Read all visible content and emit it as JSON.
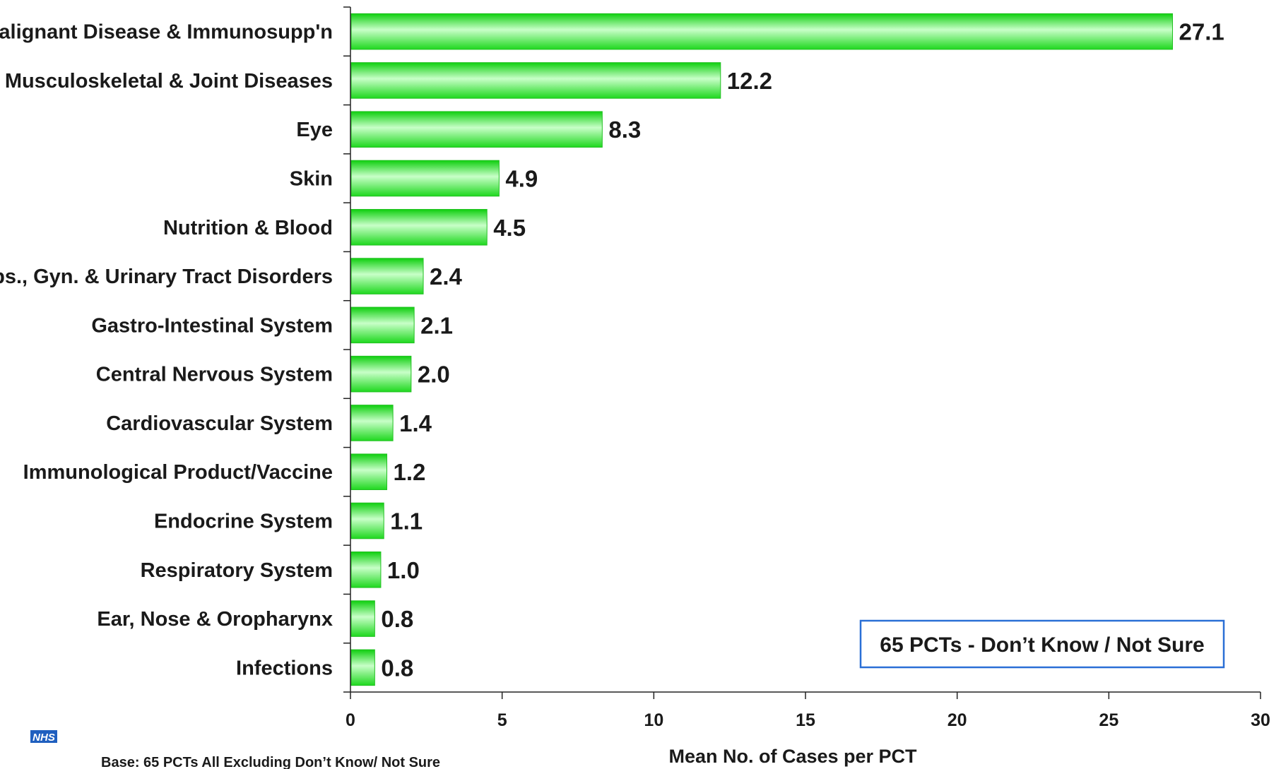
{
  "chart_data": {
    "type": "bar",
    "orientation": "horizontal",
    "categories": [
      "Malignant Disease & Immunosupp'n",
      "Musculoskeletal & Joint Diseases",
      "Eye",
      "Skin",
      "Nutrition & Blood",
      "Obs., Gyn. & Urinary Tract Disorders",
      "Gastro-Intestinal System",
      "Central Nervous System",
      "Cardiovascular System",
      "Immunological Product/Vaccine",
      "Endocrine System",
      "Respiratory System",
      "Ear, Nose & Oropharynx",
      "Infections"
    ],
    "values": [
      27.1,
      12.2,
      8.3,
      4.9,
      4.5,
      2.4,
      2.1,
      2.0,
      1.4,
      1.2,
      1.1,
      1.0,
      0.8,
      0.8
    ],
    "value_labels": [
      "27.1",
      "12.2",
      "8.3",
      "4.9",
      "4.5",
      "2.4",
      "2.1",
      "2.0",
      "1.4",
      "1.2",
      "1.1",
      "1.0",
      "0.8",
      "0.8"
    ],
    "xlabel": "Mean No. of Cases per PCT",
    "xlim": [
      0,
      30
    ],
    "xticks": [
      0,
      5,
      10,
      15,
      20,
      25,
      30
    ],
    "grid": false,
    "bar_color": "#33ee33",
    "annotation": "65 PCTs - Don’t Know / Not Sure",
    "annotation_border_color": "#2a6fd6"
  },
  "footer": {
    "base_note": "Base: 65 PCTs All Excluding Don’t Know/ Not Sure",
    "logo_text": "NHS"
  }
}
